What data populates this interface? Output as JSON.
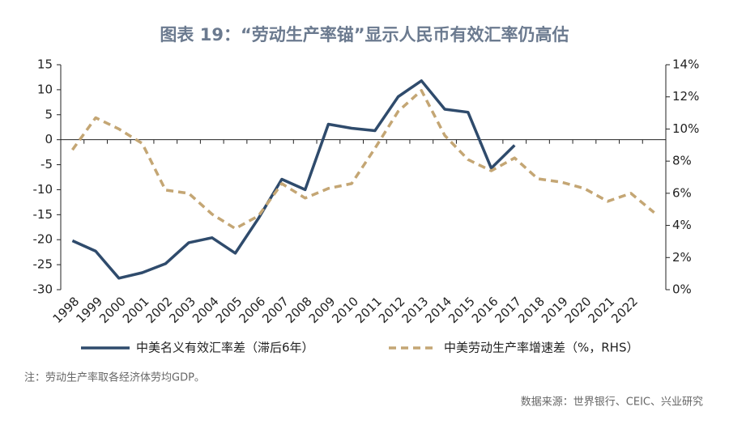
{
  "chart_data": {
    "type": "line",
    "title": "图表 19：“劳动生产率锚”显示人民币有效汇率仍高估",
    "categories": [
      "1998",
      "1999",
      "2000",
      "2001",
      "2002",
      "2003",
      "2004",
      "2005",
      "2006",
      "2007",
      "2008",
      "2009",
      "2010",
      "2011",
      "2012",
      "2013",
      "2014",
      "2015",
      "2016",
      "2017",
      "2018",
      "2019",
      "2020",
      "2021",
      "2022",
      null
    ],
    "series": [
      {
        "name": "中美名义有效汇率差（滞后6年）",
        "color": "#2f4b6c",
        "values": [
          -20.2,
          -22.3,
          -27.7,
          -26.6,
          -24.8,
          -20.6,
          -19.6,
          -22.7,
          -15.7,
          -7.9,
          -10.0,
          3.1,
          2.3,
          1.8,
          8.6,
          11.8,
          6.1,
          5.5,
          -5.7,
          -1.1,
          null,
          null,
          null,
          null,
          null,
          null
        ]
      },
      {
        "name": "中美劳动生产率增速差（%，RHS）",
        "color": "#c4a674",
        "axis": "y2",
        "dashed": true,
        "values": [
          8.7,
          10.7,
          10.0,
          9.1,
          6.2,
          6.0,
          4.7,
          3.8,
          4.6,
          6.6,
          5.7,
          6.3,
          6.6,
          8.8,
          11.1,
          12.4,
          9.6,
          8.1,
          7.4,
          8.2,
          6.9,
          6.7,
          6.3,
          5.5,
          6.0,
          4.8
        ]
      }
    ],
    "ylim": [
      -30,
      15
    ],
    "yticks": [
      -30,
      -25,
      -20,
      -15,
      -10,
      -5,
      0,
      5,
      10,
      15
    ],
    "y2lim": [
      0,
      14
    ],
    "y2ticks": [
      {
        "value": 0,
        "label": "0%"
      },
      {
        "value": 2,
        "label": "2%"
      },
      {
        "value": 4,
        "label": "4%"
      },
      {
        "value": 6,
        "label": "6%"
      },
      {
        "value": 8,
        "label": "8%"
      },
      {
        "value": 10,
        "label": "10%"
      },
      {
        "value": 12,
        "label": "12%"
      },
      {
        "value": 14,
        "label": "14%"
      }
    ],
    "note": "注：劳动生产率取各经济体劳均GDP。",
    "source": "数据来源：世界银行、CEIC、兴业研究"
  }
}
